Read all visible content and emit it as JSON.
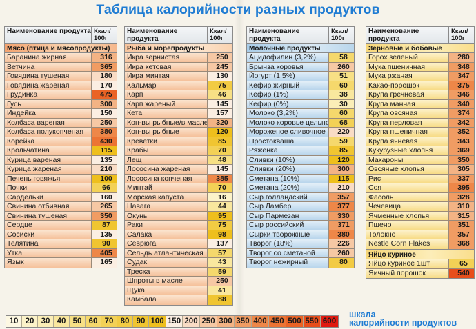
{
  "title": "Таблица калорийности разных продуктов",
  "header": {
    "name": "Наименование продукта",
    "kcal": "Ккал/ 100г"
  },
  "colors": {
    "title": "#1f7cd3",
    "scale": {
      "10": "#fdf8e2",
      "20": "#fcf3c9",
      "30": "#fbeeb7",
      "40": "#f9e79e",
      "50": "#f7e085",
      "60": "#f5d86c",
      "70": "#f3d156",
      "80": "#f2cb43",
      "90": "#f0c531",
      "100": "#eebf1d",
      "150": "#fbeee2",
      "200": "#f9dcc5",
      "250": "#f6c8a4",
      "300": "#f3b384",
      "350": "#f09c63",
      "400": "#ee8748",
      "450": "#ec7434",
      "500": "#ea6325",
      "550": "#e84e1a",
      "600": "#e01a10"
    }
  },
  "tables": [
    {
      "category": "Мясо (птица и мясопродукты)",
      "theme": "meat",
      "items": [
        {
          "name": "Баранина жирная",
          "kcal": "316"
        },
        {
          "name": "Ветчина",
          "kcal": "365"
        },
        {
          "name": "Говядина тушеная",
          "kcal": "180"
        },
        {
          "name": "Говядина жареная",
          "kcal": "170"
        },
        {
          "name": "Грудинка",
          "kcal": "475"
        },
        {
          "name": "Гусь",
          "kcal": "300"
        },
        {
          "name": "Индейка",
          "kcal": "150"
        },
        {
          "name": "Колбаса вареная",
          "kcal": "250"
        },
        {
          "name": "Колбаса полукопченая",
          "kcal": "380"
        },
        {
          "name": "Корейка",
          "kcal": "430"
        },
        {
          "name": "Крольчатина",
          "kcal": "115"
        },
        {
          "name": "Курица вареная",
          "kcal": "135"
        },
        {
          "name": "Курица жареная",
          "kcal": "210"
        },
        {
          "name": "Печень говяжья",
          "kcal": "100"
        },
        {
          "name": "Почки",
          "kcal": "66"
        },
        {
          "name": "Сардельки",
          "kcal": "160"
        },
        {
          "name": "Свинина отбивная",
          "kcal": "265"
        },
        {
          "name": "Свинина тушеная",
          "kcal": "350"
        },
        {
          "name": "Сердце",
          "kcal": "87"
        },
        {
          "name": "Сосиски",
          "kcal": "135"
        },
        {
          "name": "Телятина",
          "kcal": "90"
        },
        {
          "name": "Утка",
          "kcal": "405"
        },
        {
          "name": "Язык",
          "kcal": "165"
        }
      ]
    },
    {
      "category": "Рыба и морепродукты",
      "theme": "fish",
      "items": [
        {
          "name": "Икра зернистая",
          "kcal": "250"
        },
        {
          "name": "Икра кетовая",
          "kcal": "245"
        },
        {
          "name": "Икра минтая",
          "kcal": "130"
        },
        {
          "name": "Кальмар",
          "kcal": "75"
        },
        {
          "name": "Карп",
          "kcal": "46"
        },
        {
          "name": "Карп жареный",
          "kcal": "145"
        },
        {
          "name": "Кета",
          "kcal": "157"
        },
        {
          "name": "Кон-вы рыбные/в масле",
          "kcal": "320"
        },
        {
          "name": "Кон-вы рыбные",
          "kcal": "120"
        },
        {
          "name": "Креветки",
          "kcal": "85"
        },
        {
          "name": "Крабы",
          "kcal": "70"
        },
        {
          "name": "Лещ",
          "kcal": "48"
        },
        {
          "name": "Лососина жареная",
          "kcal": "145"
        },
        {
          "name": "Лососина копченая",
          "kcal": "385"
        },
        {
          "name": "Минтай",
          "kcal": "70"
        },
        {
          "name": "Морская капуста",
          "kcal": "16"
        },
        {
          "name": "Навага",
          "kcal": "44"
        },
        {
          "name": "Окунь",
          "kcal": "95"
        },
        {
          "name": "Раки",
          "kcal": "75"
        },
        {
          "name": "Салака",
          "kcal": "98"
        },
        {
          "name": "Севрюга",
          "kcal": "137"
        },
        {
          "name": "Сельдь атлантическая",
          "kcal": "57"
        },
        {
          "name": "Судак",
          "kcal": "43"
        },
        {
          "name": "Треска",
          "kcal": "59"
        },
        {
          "name": "Шпроты в масле",
          "kcal": "250"
        },
        {
          "name": "Щука",
          "kcal": "41"
        },
        {
          "name": "Камбала",
          "kcal": "88"
        }
      ]
    },
    {
      "category": "Молочные продукты",
      "theme": "dairy",
      "items": [
        {
          "name": "Ацидофилин (3,2%)",
          "kcal": "58"
        },
        {
          "name": "Брынза коровья",
          "kcal": "260"
        },
        {
          "name": "Йогурт (1,5%)",
          "kcal": "51"
        },
        {
          "name": "Кефир жирный",
          "kcal": "60"
        },
        {
          "name": "Кефир (1%)",
          "kcal": "38"
        },
        {
          "name": "Кефир (0%)",
          "kcal": "30"
        },
        {
          "name": "Молоко (3,2%)",
          "kcal": "60"
        },
        {
          "name": "Молоко коровье цельное",
          "kcal": "68"
        },
        {
          "name": "Мороженое сливочное",
          "kcal": "220"
        },
        {
          "name": "Простокваша",
          "kcal": "59"
        },
        {
          "name": "Ряженка",
          "kcal": "85"
        },
        {
          "name": "Сливки (10%)",
          "kcal": "120"
        },
        {
          "name": "Сливки (20%)",
          "kcal": "300"
        },
        {
          "name": "Сметана (10%)",
          "kcal": "115"
        },
        {
          "name": "Сметана (20%)",
          "kcal": "210"
        },
        {
          "name": "Сыр голландский",
          "kcal": "357"
        },
        {
          "name": "Сыр Ламбер",
          "kcal": "377"
        },
        {
          "name": "Сыр Пармезан",
          "kcal": "330"
        },
        {
          "name": "Сыр российский",
          "kcal": "371"
        },
        {
          "name": "Сырки творожные",
          "kcal": "380"
        },
        {
          "name": "Творог (18%)",
          "kcal": "226"
        },
        {
          "name": "Творог со сметаной",
          "kcal": "260"
        },
        {
          "name": "Творог нежирный",
          "kcal": "80"
        }
      ]
    },
    {
      "category": "Зерновые и бобовые",
      "theme": "grain",
      "items": [
        {
          "name": "Горох зеленый",
          "kcal": "280"
        },
        {
          "name": "Мука пшеничная",
          "kcal": "348"
        },
        {
          "name": "Мука ржаная",
          "kcal": "347"
        },
        {
          "name": "Какао-порошок",
          "kcal": "375"
        },
        {
          "name": "Крупа гречневая",
          "kcal": "346"
        },
        {
          "name": "Крупа манная",
          "kcal": "340"
        },
        {
          "name": "Крупа овсяная",
          "kcal": "374"
        },
        {
          "name": "Крупа перловая",
          "kcal": "342"
        },
        {
          "name": "Крупа пшеничная",
          "kcal": "352"
        },
        {
          "name": "Крупа ячневая",
          "kcal": "343"
        },
        {
          "name": "Кукурузные хлопья",
          "kcal": "369"
        },
        {
          "name": "Макароны",
          "kcal": "350"
        },
        {
          "name": "Овсяные хлопья",
          "kcal": "305"
        },
        {
          "name": "Рис",
          "kcal": "337"
        },
        {
          "name": "Соя",
          "kcal": "395"
        },
        {
          "name": "Фасоль",
          "kcal": "328"
        },
        {
          "name": "Чечевица",
          "kcal": "310"
        },
        {
          "name": "Ячменные хлопья",
          "kcal": "315"
        },
        {
          "name": "Пшено",
          "kcal": "351"
        },
        {
          "name": "Толокно",
          "kcal": "357"
        },
        {
          "name": "Nestle Corn Flakes",
          "kcal": "368"
        }
      ]
    },
    {
      "category": "Яйцо куриное",
      "theme": "grain",
      "no_header": true,
      "items": [
        {
          "name": "Яйцо куриное 1шт",
          "kcal": "65"
        },
        {
          "name": "Яичный порошок",
          "kcal": "540"
        }
      ]
    }
  ],
  "scale": {
    "steps": [
      "10",
      "20",
      "30",
      "40",
      "50",
      "60",
      "70",
      "80",
      "90",
      "100",
      "150",
      "200",
      "250",
      "300",
      "350",
      "400",
      "450",
      "500",
      "550",
      "600"
    ],
    "label_line1": "шкала",
    "label_line2": "калорийности продуктов"
  }
}
